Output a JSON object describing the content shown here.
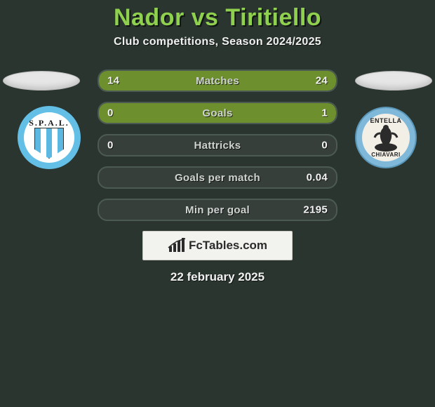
{
  "title": "Nador vs Tiritiello",
  "subtitle": "Club competitions, Season 2024/2025",
  "date": "22 february 2025",
  "brand": "FcTables.com",
  "colors": {
    "accent": "#8fd14f",
    "bar_fill": "#6e8f2e",
    "bar_bg": "#373f3b",
    "bar_border": "#4b5a52",
    "background": "#2a352f"
  },
  "clubs": {
    "left": {
      "name": "SPAL",
      "text_top": "S.P.A.L."
    },
    "right": {
      "name": "Entella",
      "text_top": "ENTELLA",
      "text_bottom": "CHIAVARI"
    }
  },
  "rows": [
    {
      "label": "Matches",
      "left": "14",
      "right": "24",
      "fill_left_pct": 37,
      "fill_right_pct": 63
    },
    {
      "label": "Goals",
      "left": "0",
      "right": "1",
      "fill_left_pct": 0,
      "fill_right_pct": 100
    },
    {
      "label": "Hattricks",
      "left": "0",
      "right": "0",
      "fill_left_pct": 0,
      "fill_right_pct": 0
    },
    {
      "label": "Goals per match",
      "left": "",
      "right": "0.04",
      "fill_left_pct": 0,
      "fill_right_pct": 0
    },
    {
      "label": "Min per goal",
      "left": "",
      "right": "2195",
      "fill_left_pct": 0,
      "fill_right_pct": 0
    }
  ]
}
